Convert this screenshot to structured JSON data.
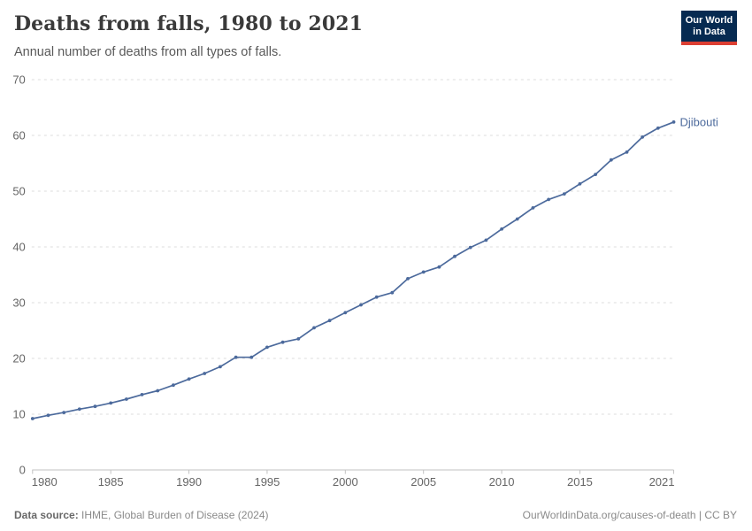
{
  "header": {
    "title": "Deaths from falls, 1980 to 2021",
    "subtitle": "Annual number of deaths from all types of falls."
  },
  "logo": {
    "line1": "Our World",
    "line2": "in Data",
    "bg_color": "#062A51",
    "accent_color": "#DC3F33"
  },
  "chart_data": {
    "type": "line",
    "title": "Deaths from falls, 1980 to 2021",
    "subtitle": "Annual number of deaths from all types of falls.",
    "x": [
      1980,
      1981,
      1982,
      1983,
      1984,
      1985,
      1986,
      1987,
      1988,
      1989,
      1990,
      1991,
      1992,
      1993,
      1994,
      1995,
      1996,
      1997,
      1998,
      1999,
      2000,
      2001,
      2002,
      2003,
      2004,
      2005,
      2006,
      2007,
      2008,
      2009,
      2010,
      2011,
      2012,
      2013,
      2014,
      2015,
      2016,
      2017,
      2018,
      2019,
      2020,
      2021
    ],
    "series": [
      {
        "name": "Djibouti",
        "color": "#4C6A9C",
        "values": [
          9.2,
          9.8,
          10.3,
          10.9,
          11.4,
          12.0,
          12.7,
          13.5,
          14.2,
          15.2,
          16.3,
          17.3,
          18.5,
          20.2,
          20.2,
          22.0,
          22.9,
          23.5,
          25.5,
          26.8,
          28.2,
          29.6,
          31.0,
          31.8,
          34.3,
          35.5,
          36.4,
          38.3,
          39.9,
          41.2,
          43.2,
          45.0,
          47.0,
          48.5,
          49.5,
          51.3,
          53.0,
          55.6,
          57.0,
          59.7,
          61.3,
          62.4
        ]
      }
    ],
    "xlabel": "",
    "ylabel": "",
    "xlim": [
      1980,
      2021
    ],
    "ylim": [
      0,
      70
    ],
    "x_ticks": [
      1980,
      1985,
      1990,
      1995,
      2000,
      2005,
      2010,
      2015,
      2021
    ],
    "y_ticks": [
      0,
      10,
      20,
      30,
      40,
      50,
      60,
      70
    ],
    "grid": "horizontal-dashed",
    "legend_position": "end-of-line-label",
    "colors": {
      "gridline": "#dcdcdc",
      "axis": "#c2c2c2",
      "tick_label": "#666666"
    }
  },
  "footer": {
    "datasource_label": "Data source:",
    "datasource_value": "IHME, Global Burden of Disease (2024)",
    "credit": "OurWorldinData.org/causes-of-death | CC BY"
  }
}
